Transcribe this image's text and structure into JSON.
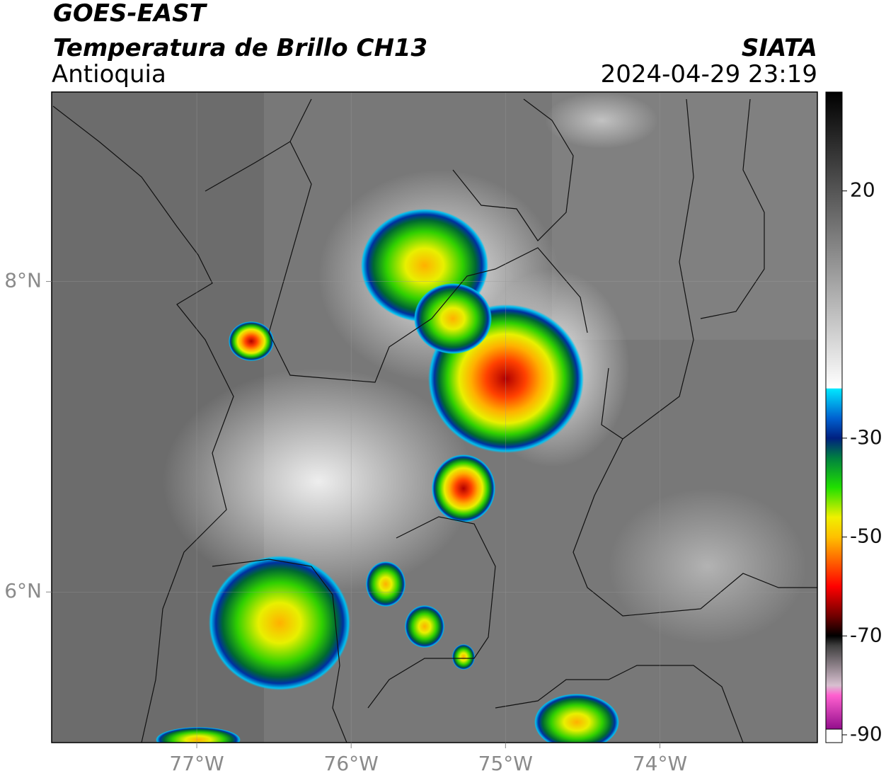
{
  "header": {
    "line1": "GOES-EAST",
    "line2": "Temperatura de Brillo CH13",
    "region": "Antioquia",
    "source": "SIATA",
    "datetime": "2024-04-29 23:19"
  },
  "map": {
    "lonlim": [
      -77.94,
      -72.98
    ],
    "latlim": [
      5.03,
      9.22
    ],
    "lonticks": [
      {
        "value": -77,
        "label": "77°W"
      },
      {
        "value": -76,
        "label": "76°W"
      },
      {
        "value": -75,
        "label": "75°W"
      },
      {
        "value": -74,
        "label": "74°W"
      }
    ],
    "latticks": [
      {
        "value": 8,
        "label": "8°N"
      },
      {
        "value": 6,
        "label": "6°N"
      }
    ]
  },
  "colorbar": {
    "lim": [
      -90,
      40
    ],
    "ticks": [
      -90,
      -70,
      -50,
      -30,
      20
    ]
  }
}
